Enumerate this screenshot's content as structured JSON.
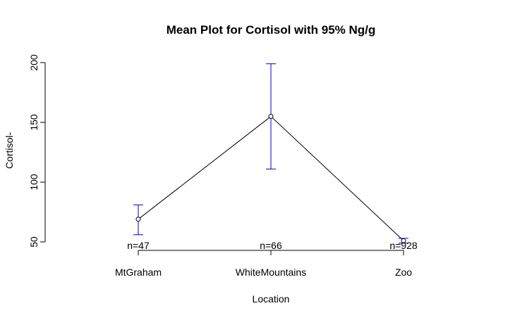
{
  "chart_data": {
    "type": "line",
    "title": "Mean Plot for Cortisol with 95% Ng/g",
    "xlabel": "Location",
    "ylabel": "Cortisol-",
    "categories": [
      "MtGraham",
      "WhiteMountains",
      "Zoo"
    ],
    "counts": [
      "n=47",
      "n=66",
      "n=928"
    ],
    "series": [
      {
        "values": [
          69,
          155,
          51
        ],
        "ci_lower": [
          56,
          111,
          49
        ],
        "ci_upper": [
          81,
          199,
          53
        ]
      }
    ],
    "yticks": [
      50,
      100,
      150,
      200
    ],
    "ylim": [
      43,
      205
    ],
    "grid": false,
    "colors": {
      "line": "#000000",
      "errorbar": "#0000CD",
      "axis": "#000000"
    }
  }
}
